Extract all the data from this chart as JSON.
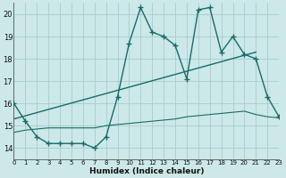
{
  "xlabel": "Humidex (Indice chaleur)",
  "xlim": [
    0,
    23
  ],
  "ylim": [
    13.5,
    20.5
  ],
  "yticks": [
    14,
    15,
    16,
    17,
    18,
    19,
    20
  ],
  "xticks": [
    0,
    1,
    2,
    3,
    4,
    5,
    6,
    7,
    8,
    9,
    10,
    11,
    12,
    13,
    14,
    15,
    16,
    17,
    18,
    19,
    20,
    21,
    22,
    23
  ],
  "bg_color": "#cce8e8",
  "grid_color": "#aacccc",
  "line_color": "#1a6b6b",
  "curve_main_x": [
    0,
    1,
    2,
    3,
    4,
    5,
    6,
    7,
    8,
    9,
    10,
    11,
    12,
    13,
    14,
    15,
    16,
    17,
    18,
    19,
    20,
    21,
    22,
    23
  ],
  "curve_main_y": [
    16.0,
    15.2,
    14.5,
    14.2,
    14.2,
    14.2,
    14.2,
    14.0,
    14.5,
    16.3,
    18.7,
    20.3,
    19.2,
    19.0,
    18.6,
    17.1,
    20.2,
    20.3,
    18.3,
    19.0,
    18.2,
    18.0,
    16.3,
    15.4
  ],
  "curve_trend_x": [
    0,
    21
  ],
  "curve_trend_y": [
    15.3,
    18.3
  ],
  "curve_flat_x": [
    0,
    1,
    2,
    3,
    4,
    5,
    6,
    7,
    8,
    9,
    10,
    11,
    12,
    13,
    14,
    15,
    16,
    17,
    18,
    19,
    20,
    21,
    22,
    23
  ],
  "curve_flat_y": [
    14.7,
    14.8,
    14.85,
    14.9,
    14.9,
    14.9,
    14.9,
    14.9,
    15.0,
    15.05,
    15.1,
    15.15,
    15.2,
    15.25,
    15.3,
    15.4,
    15.45,
    15.5,
    15.55,
    15.6,
    15.65,
    15.5,
    15.4,
    15.35
  ]
}
